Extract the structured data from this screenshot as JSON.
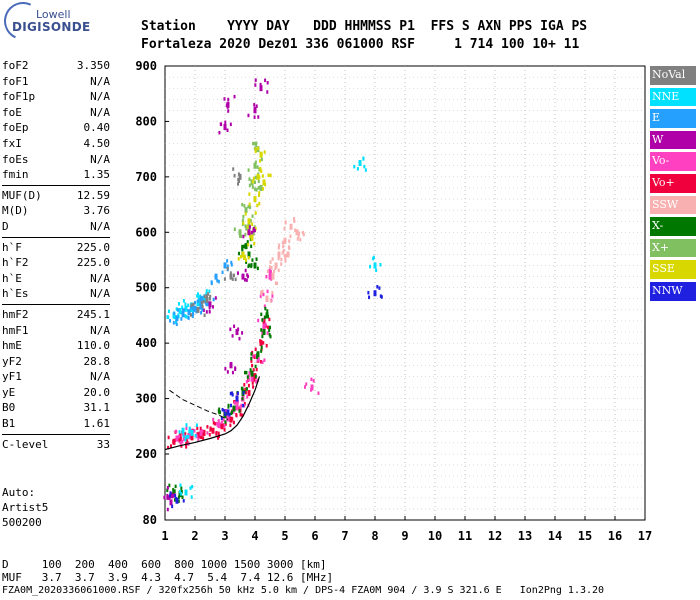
{
  "logo": {
    "top": "Lowell",
    "main": "DIGISONDE"
  },
  "header": {
    "line1": "Station    YYYY DAY   DDD HHMMSS P1  FFS S AXN PPS IGA PS",
    "line2": "Fortaleza 2020 Dez01 336 061000 RSF     1 714 100 10+ 11"
  },
  "params": {
    "group1": [
      {
        "label": "foF2",
        "value": "3.350"
      },
      {
        "label": "foF1",
        "value": "N/A"
      },
      {
        "label": "foF1p",
        "value": "N/A"
      },
      {
        "label": "foE",
        "value": "N/A"
      },
      {
        "label": "foEp",
        "value": "0.40"
      },
      {
        "label": "fxI",
        "value": "4.50"
      },
      {
        "label": "foEs",
        "value": "N/A"
      },
      {
        "label": "fmin",
        "value": "1.35"
      }
    ],
    "group2": [
      {
        "label": "MUF(D)",
        "value": "12.59"
      },
      {
        "label": "M(D)",
        "value": "3.76"
      },
      {
        "label": "D",
        "value": "N/A"
      }
    ],
    "group3": [
      {
        "label": "h`F",
        "value": "225.0"
      },
      {
        "label": "h`F2",
        "value": "225.0"
      },
      {
        "label": "h`E",
        "value": "N/A"
      },
      {
        "label": "h`Es",
        "value": "N/A"
      }
    ],
    "group4": [
      {
        "label": "hmF2",
        "value": "245.1"
      },
      {
        "label": "hmF1",
        "value": "N/A"
      },
      {
        "label": "hmE",
        "value": "110.0"
      },
      {
        "label": "yF2",
        "value": "28.8"
      },
      {
        "label": "yF1",
        "value": "N/A"
      },
      {
        "label": "yE",
        "value": "20.0"
      },
      {
        "label": "B0",
        "value": "31.1"
      },
      {
        "label": "B1",
        "value": "1.61"
      }
    ],
    "group5": [
      {
        "label": "C-level",
        "value": "33"
      }
    ]
  },
  "auto": {
    "line1": "Auto:",
    "line2": "Artist5",
    "line3": "500200"
  },
  "legend": [
    {
      "name": "NoVal",
      "color": "#808080"
    },
    {
      "name": "NNE",
      "color": "#00e0ff"
    },
    {
      "name": "E",
      "color": "#26a0ff"
    },
    {
      "name": "W",
      "color": "#b000a8"
    },
    {
      "name": "Vo-",
      "color": "#ff40c0"
    },
    {
      "name": "Vo+",
      "color": "#f0003c"
    },
    {
      "name": "SSW",
      "color": "#f8b0b0"
    },
    {
      "name": "X-",
      "color": "#007800"
    },
    {
      "name": "X+",
      "color": "#80c060"
    },
    {
      "name": "SSE",
      "color": "#d8d800"
    },
    {
      "name": "NNW",
      "color": "#2020e0"
    }
  ],
  "muf_table": {
    "row1": "D     100  200  400  600  800 1000 1500 3000 [km]",
    "row2": "MUF   3.7  3.7  3.9  4.3  4.7  5.4  7.4 12.6 [MHz]"
  },
  "footer": "FZA0M_2020336061000.RSF / 320fx256h 50 kHz 5.0 km / DPS-4 FZA0M 904 / 3.9 S 321.6 E   Ion2Png 1.3.20",
  "chart_data": {
    "type": "scatter",
    "xlabel": "",
    "ylabel": "",
    "xlim": [
      1,
      17
    ],
    "ylim": [
      80,
      900
    ],
    "xticks": [
      1,
      2,
      3,
      4,
      5,
      6,
      7,
      8,
      9,
      10,
      11,
      12,
      13,
      14,
      15,
      16,
      17
    ],
    "yticks": [
      80,
      200,
      300,
      400,
      500,
      600,
      700,
      800,
      900
    ],
    "grid": true,
    "series": [
      {
        "name": "Vo+",
        "color": "#f0003c",
        "points": [
          [
            1.3,
            222
          ],
          [
            1.5,
            226
          ],
          [
            1.7,
            228
          ],
          [
            1.9,
            230
          ],
          [
            2.1,
            234
          ],
          [
            2.3,
            238
          ],
          [
            2.6,
            242
          ],
          [
            2.9,
            250
          ],
          [
            3.2,
            262
          ],
          [
            3.5,
            280
          ],
          [
            3.8,
            310
          ],
          [
            4.0,
            340
          ],
          [
            4.1,
            370
          ],
          [
            4.2,
            400
          ],
          [
            4.3,
            440
          ]
        ]
      },
      {
        "name": "Vo-",
        "color": "#ff40c0",
        "points": [
          [
            1.4,
            228
          ],
          [
            1.8,
            232
          ],
          [
            2.2,
            238
          ],
          [
            2.8,
            252
          ],
          [
            3.1,
            264
          ],
          [
            3.4,
            284
          ],
          [
            3.6,
            300
          ],
          [
            3.9,
            336
          ],
          [
            4.1,
            372
          ],
          [
            4.3,
            430
          ],
          [
            4.4,
            480
          ],
          [
            4.5,
            520
          ],
          [
            5.9,
            320
          ]
        ]
      },
      {
        "name": "X-",
        "color": "#007800",
        "points": [
          [
            1.3,
            128
          ],
          [
            1.5,
            127
          ],
          [
            3.0,
            270
          ],
          [
            3.3,
            282
          ],
          [
            3.6,
            310
          ],
          [
            3.9,
            345
          ],
          [
            4.1,
            380
          ],
          [
            4.3,
            420
          ],
          [
            4.4,
            450
          ],
          [
            3.7,
            575
          ],
          [
            3.8,
            560
          ],
          [
            4.0,
            540
          ]
        ]
      },
      {
        "name": "X+",
        "color": "#80c060",
        "points": [
          [
            3.5,
            600
          ],
          [
            3.7,
            640
          ],
          [
            3.9,
            690
          ],
          [
            4.0,
            720
          ],
          [
            4.1,
            750
          ],
          [
            4.2,
            680
          ],
          [
            3.8,
            610
          ]
        ]
      },
      {
        "name": "SSE",
        "color": "#d8d800",
        "points": [
          [
            3.6,
            560
          ],
          [
            3.8,
            620
          ],
          [
            4.0,
            660
          ],
          [
            4.1,
            700
          ],
          [
            4.2,
            740
          ],
          [
            3.9,
            590
          ],
          [
            4.3,
            690
          ]
        ]
      },
      {
        "name": "W",
        "color": "#b000a8",
        "points": [
          [
            3.2,
            360
          ],
          [
            3.4,
            420
          ],
          [
            3.6,
            520
          ],
          [
            3.8,
            600
          ],
          [
            4.0,
            820
          ],
          [
            4.2,
            860
          ],
          [
            1.2,
            125
          ],
          [
            1.2,
            112
          ],
          [
            2.5,
            470
          ],
          [
            3.0,
            790
          ],
          [
            3.1,
            830
          ]
        ]
      },
      {
        "name": "NNE",
        "color": "#00e0ff",
        "points": [
          [
            1.3,
            450
          ],
          [
            1.5,
            458
          ],
          [
            1.7,
            462
          ],
          [
            1.9,
            468
          ],
          [
            2.1,
            472
          ],
          [
            2.3,
            480
          ],
          [
            1.6,
            242
          ],
          [
            1.9,
            238
          ],
          [
            7.5,
            725
          ],
          [
            8.0,
            540
          ],
          [
            1.7,
            130
          ]
        ]
      },
      {
        "name": "E",
        "color": "#26a0ff",
        "points": [
          [
            1.4,
            445
          ],
          [
            1.6,
            452
          ],
          [
            1.8,
            456
          ],
          [
            2.0,
            462
          ],
          [
            2.2,
            466
          ],
          [
            2.4,
            472
          ],
          [
            2.7,
            520
          ],
          [
            3.0,
            540
          ]
        ]
      },
      {
        "name": "SSW",
        "color": "#f8b0b0",
        "points": [
          [
            4.4,
            480
          ],
          [
            4.6,
            520
          ],
          [
            4.8,
            560
          ],
          [
            5.0,
            585
          ],
          [
            5.2,
            610
          ],
          [
            5.4,
            600
          ],
          [
            4.7,
            540
          ],
          [
            5.1,
            560
          ]
        ]
      },
      {
        "name": "NNW",
        "color": "#2020e0",
        "points": [
          [
            1.4,
            115
          ],
          [
            3.1,
            275
          ],
          [
            3.4,
            300
          ],
          [
            8.0,
            490
          ]
        ]
      },
      {
        "name": "NoVal",
        "color": "#808080",
        "points": [
          [
            2.1,
            460
          ],
          [
            2.4,
            478
          ],
          [
            3.2,
            520
          ],
          [
            3.5,
            700
          ]
        ]
      }
    ],
    "profile_solid": [
      [
        1,
        208
      ],
      [
        1.5,
        215
      ],
      [
        2,
        221
      ],
      [
        2.5,
        228
      ],
      [
        3,
        236
      ],
      [
        3.2,
        242
      ],
      [
        3.4,
        252
      ],
      [
        3.6,
        268
      ],
      [
        3.8,
        290
      ],
      [
        4,
        315
      ],
      [
        4.15,
        340
      ]
    ],
    "profile_dashed": [
      [
        1.15,
        315
      ],
      [
        1.6,
        298
      ],
      [
        2,
        288
      ],
      [
        2.4,
        278
      ],
      [
        2.8,
        270
      ],
      [
        3.1,
        262
      ]
    ]
  }
}
